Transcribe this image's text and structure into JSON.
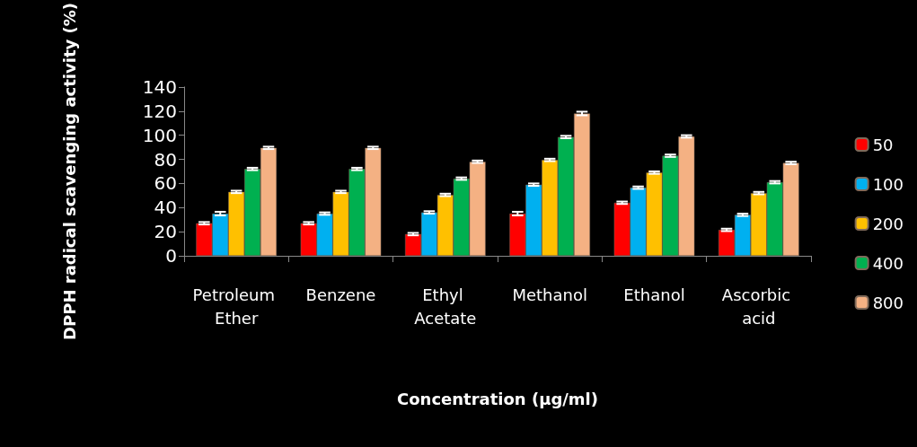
{
  "chart_data": {
    "type": "bar",
    "xlabel": "Concentration (µg/ml)",
    "ylabel": "DPPH radical scavenging activity (%)",
    "categories": [
      "Petroleum Ether",
      "Benzene",
      "Ethyl Acetate",
      "Methanol",
      "Ethanol",
      "Ascorbic acid"
    ],
    "series": [
      {
        "name": "50",
        "color": "#ff0000",
        "values": [
          27,
          27,
          18,
          35,
          44,
          21.5
        ],
        "errors": [
          1,
          1,
          1,
          1.5,
          1,
          1
        ]
      },
      {
        "name": "100",
        "color": "#00b0f0",
        "values": [
          35,
          35,
          36,
          59,
          56.5,
          34
        ],
        "errors": [
          1.5,
          1,
          1,
          1,
          1,
          1
        ]
      },
      {
        "name": "200",
        "color": "#ffc000",
        "values": [
          53,
          53,
          50.5,
          79.5,
          69,
          52
        ],
        "errors": [
          1,
          1,
          1,
          1,
          1,
          1
        ]
      },
      {
        "name": "400",
        "color": "#00b050",
        "values": [
          72,
          72,
          64,
          98.5,
          83,
          61
        ],
        "errors": [
          1,
          1,
          1,
          1,
          1,
          1
        ]
      },
      {
        "name": "800",
        "color": "#f4b183",
        "values": [
          89.5,
          89.5,
          78,
          118,
          99,
          77
        ],
        "errors": [
          1,
          1,
          1,
          1.5,
          1,
          1
        ]
      }
    ],
    "ylim": [
      0,
      140
    ],
    "yticks": [
      0,
      20,
      40,
      60,
      80,
      100,
      120,
      140
    ],
    "grid": false,
    "legend": "right"
  }
}
